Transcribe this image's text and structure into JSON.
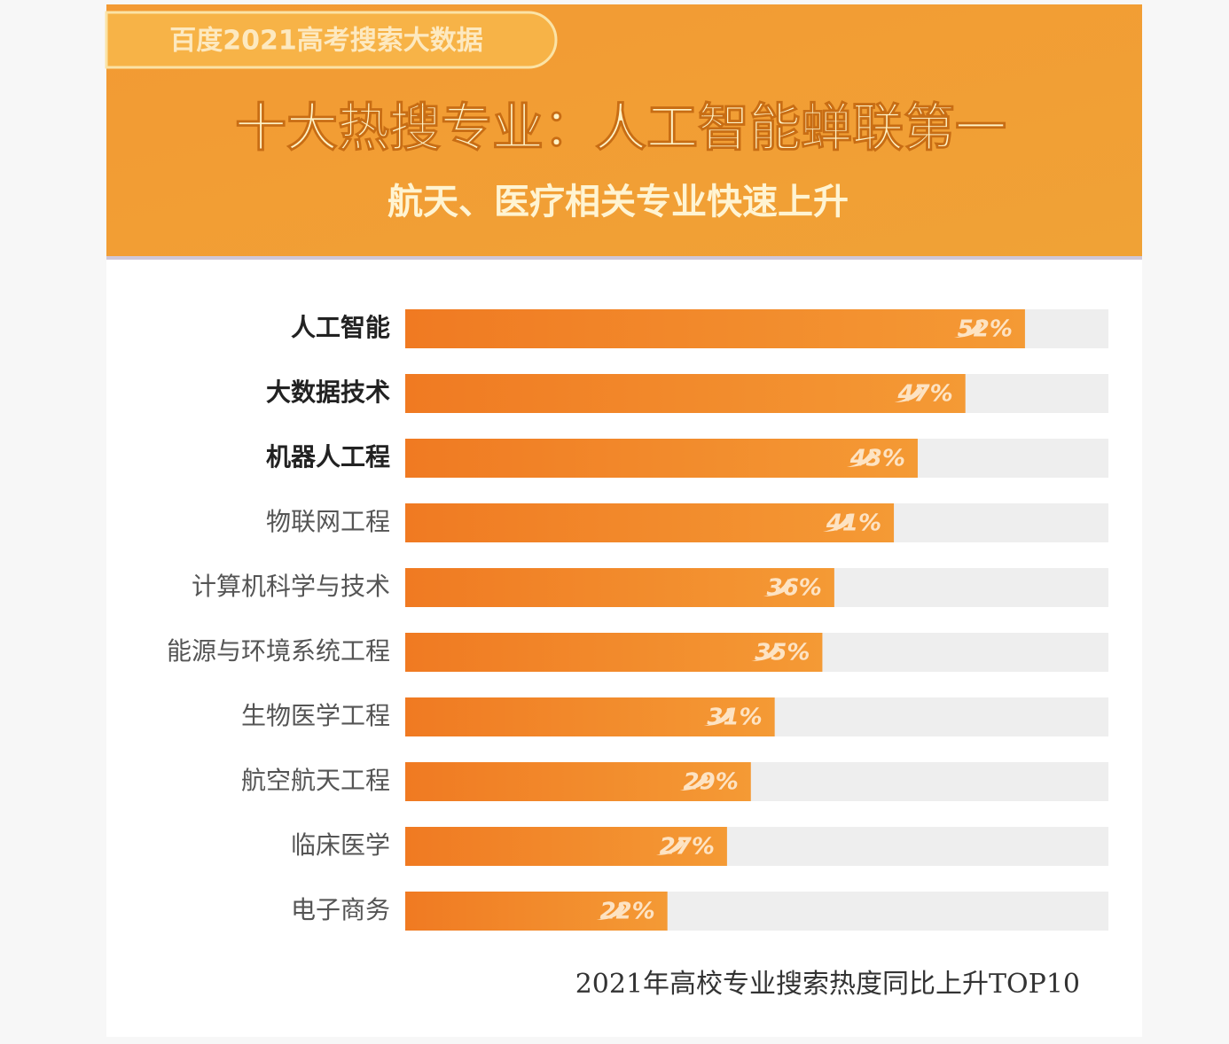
{
  "chart_data": {
    "type": "bar",
    "tag": "百度2021高考搜索大数据",
    "title": "十大热搜专业：人工智能蝉联第一",
    "subtitle": "航天、医疗相关专业快速上升",
    "caption": "2021年高校专业搜索热度同比上升TOP10",
    "categories": [
      "人工智能",
      "大数据技术",
      "机器人工程",
      "物联网工程",
      "计算机科学与技术",
      "能源与环境系统工程",
      "生物医学工程",
      "航空航天工程",
      "临床医学",
      "电子商务"
    ],
    "values": [
      52,
      47,
      43,
      41,
      36,
      35,
      31,
      29,
      27,
      22
    ],
    "value_labels": [
      "52%",
      "47%",
      "43%",
      "41%",
      "36%",
      "35%",
      "31%",
      "29%",
      "27%",
      "22%"
    ],
    "xlim": [
      0,
      59
    ],
    "color": "#f07c22"
  }
}
